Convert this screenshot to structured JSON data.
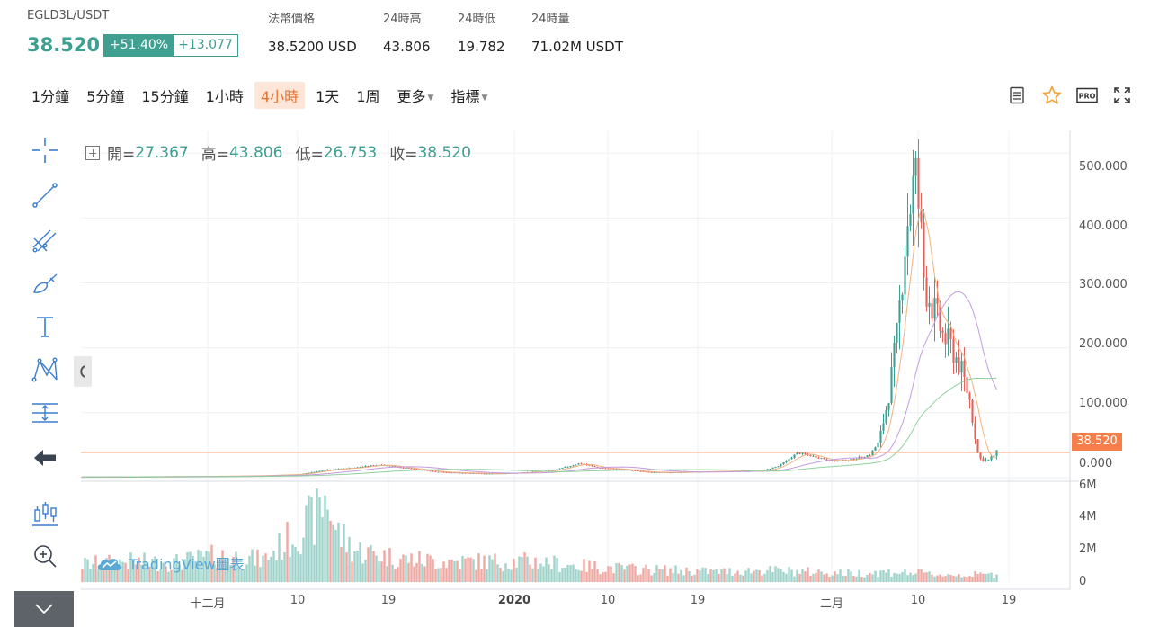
{
  "ticker": {
    "symbol": "EGLD3L/USDT",
    "last_price": "38.520",
    "change_pct": "+51.40%",
    "change_abs": "+13.077",
    "stats": [
      {
        "label": "法幣價格",
        "value": "38.5200 USD"
      },
      {
        "label": "24時高",
        "value": "43.806"
      },
      {
        "label": "24時低",
        "value": "19.782"
      },
      {
        "label": "24時量",
        "value": "71.02M USDT"
      }
    ]
  },
  "toolbar": {
    "timeframes": [
      {
        "label": "1分鐘",
        "active": false
      },
      {
        "label": "5分鐘",
        "active": false
      },
      {
        "label": "15分鐘",
        "active": false
      },
      {
        "label": "1小時",
        "active": false
      },
      {
        "label": "4小時",
        "active": true
      },
      {
        "label": "1天",
        "active": false
      },
      {
        "label": "1周",
        "active": false
      }
    ],
    "more_label": "更多",
    "indicators_label": "指標",
    "pro_label": "PRO"
  },
  "legend": {
    "open_key": "開=",
    "open_val": "27.367",
    "high_key": "高=",
    "high_val": "43.806",
    "low_key": "低=",
    "low_val": "26.753",
    "close_key": "收=",
    "close_val": "38.520"
  },
  "watermark": "TradingView圖表",
  "colors": {
    "up": "#3f9f91",
    "down": "#e2635b",
    "accent": "#e8712c",
    "price_tag": "#f57e4a",
    "ma_fast": "#f2b27d",
    "ma_mid": "#c49ae0",
    "ma_slow": "#8fd19a"
  },
  "icons": [
    "crosshair-icon",
    "trendline-icon",
    "fib-icon",
    "brush-icon",
    "text-icon",
    "pattern-icon",
    "measure-icon",
    "back-arrow-icon",
    "candles-icon",
    "zoom-icon",
    "chevron-down-icon",
    "note-icon",
    "star-icon",
    "fullscreen-icon"
  ],
  "chart_data": {
    "type": "candlestick",
    "price_axis": {
      "labels": [
        "500.000",
        "400.000",
        "300.000",
        "200.000",
        "100.000",
        "0.000"
      ],
      "values": [
        500,
        400,
        300,
        200,
        100,
        0
      ],
      "ylim": [
        -3,
        535
      ]
    },
    "volume_axis": {
      "labels": [
        "6M",
        "4M",
        "2M",
        "0"
      ],
      "values": [
        6,
        4,
        2,
        0
      ],
      "unit": "M"
    },
    "time_axis": {
      "labels": [
        "十二月",
        "10",
        "19",
        "2020",
        "10",
        "19",
        "二月",
        "10",
        "19"
      ],
      "bold": [
        false,
        false,
        false,
        true,
        false,
        false,
        false,
        false,
        false
      ]
    },
    "current_price": "38.520",
    "current_price_value": 38.52,
    "approx_close_path": [
      [
        0,
        1
      ],
      [
        5,
        1.2
      ],
      [
        10,
        1.5
      ],
      [
        15,
        2
      ],
      [
        20,
        3
      ],
      [
        24,
        5
      ],
      [
        27,
        12
      ],
      [
        30,
        15
      ],
      [
        33,
        20
      ],
      [
        36,
        14
      ],
      [
        39,
        9
      ],
      [
        42,
        7
      ],
      [
        45,
        6
      ],
      [
        48,
        7
      ],
      [
        52,
        11
      ],
      [
        55,
        22
      ],
      [
        57,
        15
      ],
      [
        60,
        12
      ],
      [
        63,
        8
      ],
      [
        66,
        8
      ],
      [
        69,
        9
      ],
      [
        72,
        10
      ],
      [
        75,
        10
      ],
      [
        77,
        18
      ],
      [
        79,
        38
      ],
      [
        81,
        32
      ],
      [
        83,
        25
      ],
      [
        85,
        28
      ],
      [
        87,
        35
      ],
      [
        88,
        55
      ],
      [
        89,
        120
      ],
      [
        90,
        220
      ],
      [
        91,
        380
      ],
      [
        92,
        470
      ],
      [
        92.5,
        400
      ],
      [
        93,
        300
      ],
      [
        94,
        260
      ],
      [
        95,
        220
      ],
      [
        96,
        200
      ],
      [
        97,
        170
      ],
      [
        98,
        120
      ],
      [
        99,
        30
      ],
      [
        100,
        25
      ],
      [
        101,
        38
      ]
    ],
    "approx_volume_m": [
      [
        0,
        1.2
      ],
      [
        5,
        1.4
      ],
      [
        10,
        1.3
      ],
      [
        15,
        1.8
      ],
      [
        20,
        1.5
      ],
      [
        26,
        4.5
      ],
      [
        27,
        6.0
      ],
      [
        28,
        3.5
      ],
      [
        30,
        2.2
      ],
      [
        35,
        1.6
      ],
      [
        40,
        1.4
      ],
      [
        50,
        1.4
      ],
      [
        55,
        1.1
      ],
      [
        60,
        0.9
      ],
      [
        65,
        0.8
      ],
      [
        70,
        0.7
      ],
      [
        75,
        0.8
      ],
      [
        80,
        0.7
      ],
      [
        85,
        0.6
      ],
      [
        90,
        0.7
      ],
      [
        95,
        0.5
      ],
      [
        101,
        0.5
      ]
    ]
  }
}
